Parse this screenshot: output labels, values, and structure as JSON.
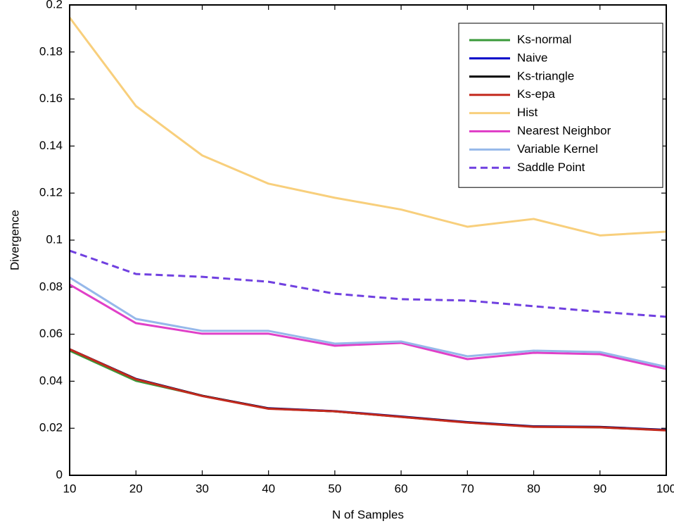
{
  "chart_data": {
    "type": "line",
    "xlabel": "N of Samples",
    "ylabel": "Divergence",
    "x": [
      10,
      20,
      30,
      40,
      50,
      60,
      70,
      80,
      90,
      100
    ],
    "xlim": [
      10,
      100
    ],
    "xticks": [
      10,
      20,
      30,
      40,
      50,
      60,
      70,
      80,
      90,
      100
    ],
    "ylim": [
      0,
      0.2
    ],
    "yticks": [
      0,
      0.02,
      0.04,
      0.06,
      0.08,
      0.1,
      0.12,
      0.14,
      0.16,
      0.18,
      0.2
    ],
    "legend": "upper right",
    "series": [
      {
        "name": "Ks-normal",
        "color": "#3a9a3a",
        "values": [
          0.053,
          0.0402,
          0.0338,
          0.0284,
          0.0272,
          0.0249,
          0.0225,
          0.0207,
          0.0204,
          0.0192
        ]
      },
      {
        "name": "Naive",
        "color": "#0000c8",
        "values": [
          0.0536,
          0.041,
          0.0338,
          0.0285,
          0.0273,
          0.025,
          0.0226,
          0.0208,
          0.0206,
          0.0193
        ]
      },
      {
        "name": "Ks-triangle",
        "color": "#000000",
        "values": [
          0.0536,
          0.0409,
          0.0338,
          0.0284,
          0.0272,
          0.0249,
          0.0225,
          0.0207,
          0.0205,
          0.0192
        ]
      },
      {
        "name": "Ks-epa",
        "color": "#c42a1e",
        "values": [
          0.0536,
          0.0408,
          0.0337,
          0.0283,
          0.0272,
          0.0248,
          0.0224,
          0.0206,
          0.0204,
          0.0191
        ]
      },
      {
        "name": "Hist",
        "color": "#f8cf7c",
        "values": [
          0.1946,
          0.157,
          0.136,
          0.124,
          0.118,
          0.113,
          0.1057,
          0.109,
          0.102,
          0.1036
        ]
      },
      {
        "name": "Nearest Neighbor",
        "color": "#e040c8",
        "values": [
          0.0811,
          0.0647,
          0.0602,
          0.0602,
          0.0551,
          0.0563,
          0.0494,
          0.0521,
          0.0515,
          0.0452
        ]
      },
      {
        "name": "Variable Kernel",
        "color": "#96b8ea",
        "values": [
          0.0841,
          0.0665,
          0.0614,
          0.0614,
          0.056,
          0.0569,
          0.0506,
          0.053,
          0.0524,
          0.0461
        ]
      },
      {
        "name": "Saddle Point",
        "color": "#7040e0",
        "linestyle": "dashed",
        "values": [
          0.0955,
          0.0856,
          0.0844,
          0.0823,
          0.0772,
          0.0749,
          0.0743,
          0.0719,
          0.0695,
          0.0674
        ]
      }
    ]
  }
}
